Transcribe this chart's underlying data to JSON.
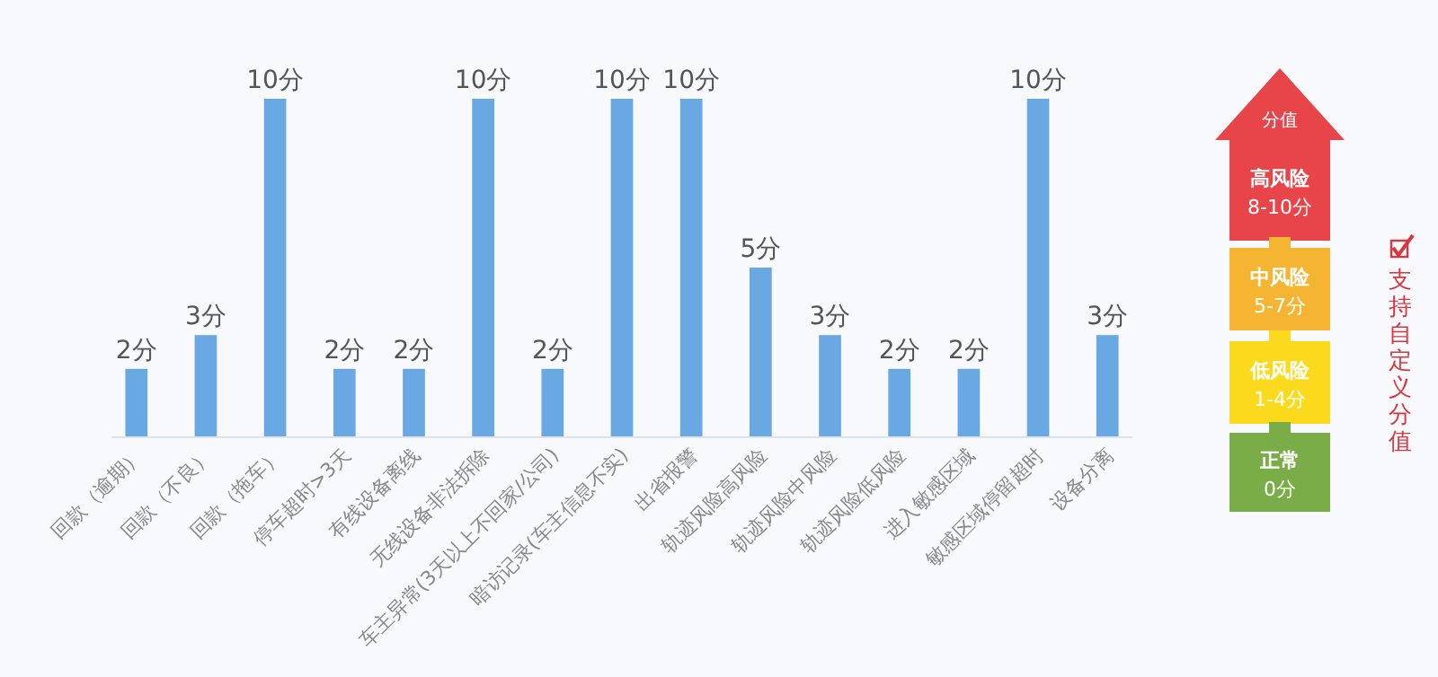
{
  "chart_data": {
    "type": "bar",
    "categories": [
      "回款（逾期）",
      "回款（不良）",
      "回款（拖车）",
      "停车超时>3天",
      "有线设备离线",
      "无线设备非法拆除",
      "车主异常(3天以上不回家/公司)",
      "暗访记录(车主信息不实)",
      "出省报警",
      "轨迹风险高风险",
      "轨迹风险中风险",
      "轨迹风险低风险",
      "进入敏感区域",
      "敏感区域停留超时",
      "设备分离"
    ],
    "values": [
      2,
      3,
      10,
      2,
      2,
      10,
      2,
      10,
      10,
      5,
      3,
      2,
      2,
      10,
      3
    ],
    "value_labels": [
      "2分",
      "3分",
      "10分",
      "2分",
      "2分",
      "10分",
      "2分",
      "10分",
      "10分",
      "5分",
      "3分",
      "2分",
      "2分",
      "10分",
      "3分"
    ],
    "color": "#6aa8e4",
    "annotations": [
      "分值",
      "高风险",
      "8-10分",
      "中风险",
      "5-7分",
      "低风险",
      "1-4分",
      "正常",
      "0分",
      "支持自定义分值"
    ]
  }
}
